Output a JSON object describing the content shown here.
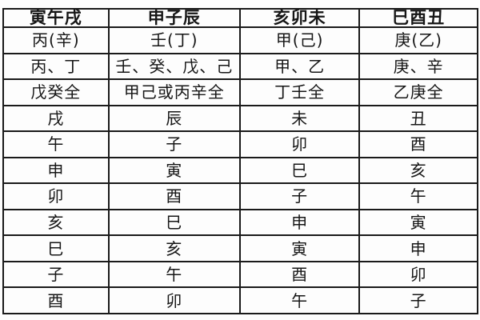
{
  "table": {
    "headers": [
      "寅午戌",
      "申子辰",
      "亥卯未",
      "巳酉丑"
    ],
    "rows": [
      [
        "丙(辛)",
        "壬(丁)",
        "甲(己)",
        "庚(乙)"
      ],
      [
        "丙、丁",
        "壬、癸、戊、己",
        "甲、乙",
        "庚、辛"
      ],
      [
        "戊癸全",
        "甲己或丙辛全",
        "丁壬全",
        "乙庚全"
      ],
      [
        "戌",
        "辰",
        "未",
        "丑"
      ],
      [
        "午",
        "子",
        "卯",
        "酉"
      ],
      [
        "申",
        "寅",
        "巳",
        "亥"
      ],
      [
        "卯",
        "酉",
        "子",
        "午"
      ],
      [
        "亥",
        "巳",
        "申",
        "寅"
      ],
      [
        "巳",
        "亥",
        "寅",
        "申"
      ],
      [
        "子",
        "午",
        "酉",
        "卯"
      ],
      [
        "酉",
        "卯",
        "午",
        "子"
      ]
    ],
    "colors": {
      "border": "#1a1a1a",
      "background": "#fdfdfd",
      "text": "#161616"
    }
  }
}
